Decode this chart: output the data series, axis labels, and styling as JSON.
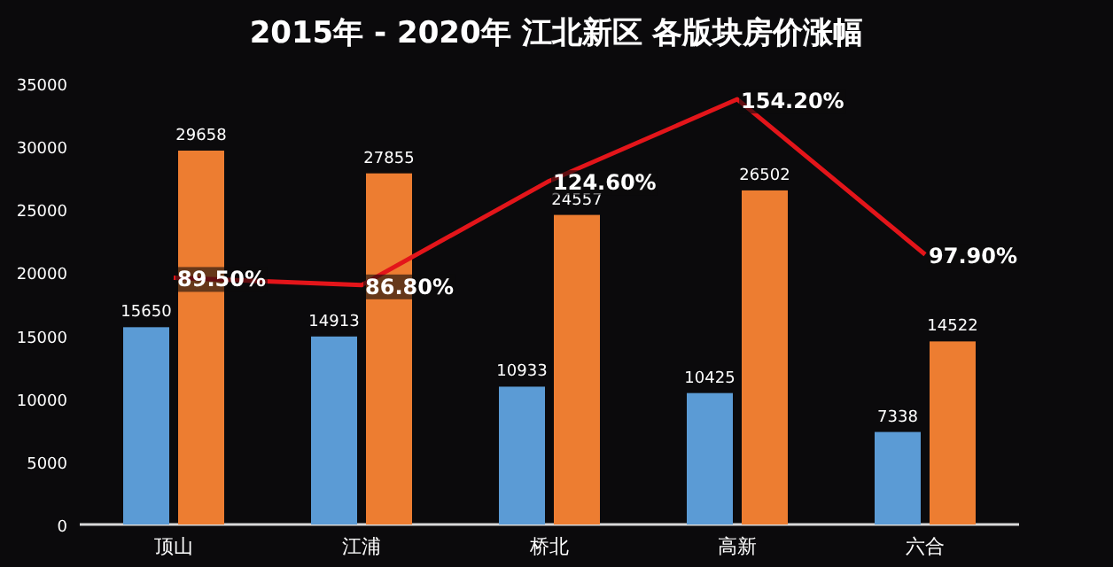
{
  "chart_data": {
    "type": "bar",
    "title": "2015年 - 2020年 江北新区 各版块房价涨幅",
    "categories": [
      "顶山",
      "江浦",
      "桥北",
      "高新",
      "六合"
    ],
    "series": [
      {
        "color": "#5b9bd5",
        "values": [
          15650,
          14913,
          10933,
          10425,
          7338
        ]
      },
      {
        "color": "#ed7d31",
        "values": [
          29658,
          27855,
          24557,
          26502,
          14522
        ]
      },
      {
        "type": "line",
        "axis": "y2",
        "color": "#e3151a",
        "values": [
          89.5,
          86.8,
          124.6,
          154.2,
          97.9
        ],
        "value_labels": [
          "89.50%",
          "86.80%",
          "124.60%",
          "154.20%",
          "97.90%"
        ]
      }
    ],
    "data_labels": true,
    "ylim": [
      0,
      35000
    ],
    "yticks": [
      0,
      5000,
      10000,
      15000,
      20000,
      25000,
      30000,
      35000
    ],
    "y2lim": [
      0,
      160
    ],
    "grid": false
  }
}
